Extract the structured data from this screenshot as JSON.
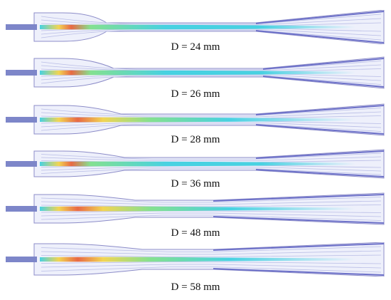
{
  "figure": {
    "panels": [
      {
        "caption": "D = 24 mm",
        "diameter_mm": 24
      },
      {
        "caption": "D = 26 mm",
        "diameter_mm": 26
      },
      {
        "caption": "D = 28 mm",
        "diameter_mm": 28
      },
      {
        "caption": "D = 36 mm",
        "diameter_mm": 36
      },
      {
        "caption": "D = 48 mm",
        "diameter_mm": 48
      },
      {
        "caption": "D = 58 mm",
        "diameter_mm": 58
      }
    ],
    "colors": {
      "wall_outline": "#8c8cc8",
      "streamline": "#b9bde6",
      "outer_band": "#6d71c9",
      "background_fill": "#eef0fb",
      "nozzle": "#7d86c9",
      "jet_cyan": "#3fd0e0",
      "jet_green": "#7fe08a",
      "jet_yellow": "#f2d34a",
      "jet_red": "#e8623b"
    }
  }
}
